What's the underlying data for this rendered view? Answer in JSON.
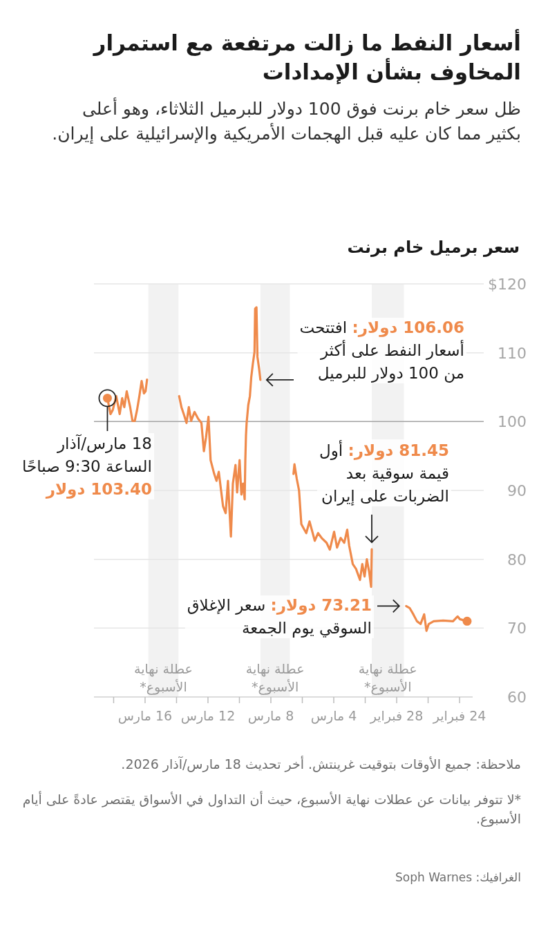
{
  "chart_data": {
    "type": "line",
    "title": "أسعار النفط ما زالت مرتفعة مع استمرار المخاوف بشأن الإمدادات",
    "subtitle": "ظل سعر خام برنت فوق 100 دولار للبرميل الثلاثاء، وهو أعلى بكثير مما كان عليه قبل الهجمات الأمريكية والإسرائيلية على إيران.",
    "ylabel": "سعر برميل خام برنت",
    "xlim": [
      "2026-03-19T06:00",
      "2026-02-23T04:00"
    ],
    "xticks": [
      {
        "value": "2026-02-24",
        "label": "24 فبراير"
      },
      {
        "value": "2026-02-26",
        "label": null
      },
      {
        "value": "2026-02-28",
        "label": "28 فبراير"
      },
      {
        "value": "2026-03-02",
        "label": null
      },
      {
        "value": "2026-03-04",
        "label": "4 مارس"
      },
      {
        "value": "2026-03-06",
        "label": null
      },
      {
        "value": "2026-03-08",
        "label": "8 مارس"
      },
      {
        "value": "2026-03-10",
        "label": null
      },
      {
        "value": "2026-03-12",
        "label": "12 مارس"
      },
      {
        "value": "2026-03-14",
        "label": null
      },
      {
        "value": "2026-03-16",
        "label": "16 مارس"
      },
      {
        "value": "2026-03-18",
        "label": null
      }
    ],
    "ylim": [
      60,
      120
    ],
    "yticks": [
      60,
      70,
      80,
      90,
      100,
      110,
      {
        "value": 120,
        "label": "$120"
      }
    ],
    "grid": "y",
    "ref_lines": [
      {
        "axis": "y",
        "value": 100,
        "color": "#a6a6a6"
      }
    ],
    "bands": [
      {
        "axis": "x",
        "from": "2026-02-27T13:00",
        "to": "2026-03-01T14:00",
        "label": "عطلة نهاية\nالأسبوع*",
        "color": "#f2f2f2"
      },
      {
        "axis": "x",
        "from": "2026-03-06T19:00",
        "to": "2026-03-08T16:00",
        "label": "عطلة نهاية\nالأسبوع*",
        "color": "#f2f2f2"
      },
      {
        "axis": "x",
        "from": "2026-03-13T21:00",
        "to": "2026-03-15T19:00",
        "label": "عطلة نهاية\nالأسبوع*",
        "color": "#f2f2f2"
      }
    ],
    "series": [
      {
        "color": "#ef8a4b",
        "x": [
          "2026-02-23T12:30",
          "2026-02-23T23:30",
          "2026-02-24T03:00",
          "2026-02-24T10:00",
          "2026-02-25T01:00",
          "2026-02-25T15:30",
          "2026-02-25T23:00",
          "2026-02-26T02:30",
          "2026-02-26T06:00",
          "2026-02-26T11:30",
          "2026-02-26T17:00",
          "2026-02-26T22:30",
          "2026-02-27T04:00",
          "2026-02-27T09:30"
        ],
        "values": [
          71.0,
          71.3,
          71.7,
          71.0,
          71.1,
          71.0,
          70.6,
          69.6,
          72.0,
          70.6,
          71.0,
          72.0,
          72.9,
          73.21
        ]
      },
      {
        "color": "#ef8a4b",
        "x": [
          "2026-03-01T14:00",
          "2026-03-01T15:00",
          "2026-03-01T18:00",
          "2026-03-01T21:30",
          "2026-03-02T01:00",
          "2026-03-02T04:30",
          "2026-03-02T08:00",
          "2026-03-02T14:00",
          "2026-03-02T19:00",
          "2026-03-03T00:30",
          "2026-03-03T03:30",
          "2026-03-03T08:00",
          "2026-03-03T13:30",
          "2026-03-03T19:00",
          "2026-03-03T23:30",
          "2026-03-04T06:00",
          "2026-03-04T11:00",
          "2026-03-04T18:30",
          "2026-03-05T00:00",
          "2026-03-05T05:00",
          "2026-03-05T13:00",
          "2026-03-05T18:00",
          "2026-03-06T01:30",
          "2026-03-06T05:00",
          "2026-03-06T08:30",
          "2026-03-06T12:00",
          "2026-03-06T13:30"
        ],
        "values": [
          81.45,
          76.0,
          78.2,
          80.0,
          77.5,
          79.3,
          77.0,
          78.6,
          79.3,
          82.0,
          84.3,
          82.4,
          83.1,
          81.7,
          84.0,
          81.4,
          82.4,
          83.1,
          83.8,
          82.7,
          85.5,
          83.8,
          85.1,
          90.0,
          91.7,
          93.8,
          92.4
        ]
      },
      {
        "color": "#ef8a4b",
        "x": [
          "2026-03-08T16:00",
          "2026-03-08T18:00",
          "2026-03-08T20:30",
          "2026-03-08T22:00",
          "2026-03-09T00:00",
          "2026-03-09T01:00",
          "2026-03-09T03:30",
          "2026-03-09T06:00",
          "2026-03-09T08:00",
          "2026-03-09T10:30",
          "2026-03-09T13:00",
          "2026-03-09T14:00",
          "2026-03-09T15:00",
          "2026-03-09T16:00",
          "2026-03-09T18:30",
          "2026-03-09T21:00",
          "2026-03-09T23:45",
          "2026-03-10T03:30",
          "2026-03-10T06:00",
          "2026-03-10T10:00",
          "2026-03-10T13:00",
          "2026-03-10T17:30",
          "2026-03-10T21:00",
          "2026-03-11T01:00",
          "2026-03-11T04:00",
          "2026-03-11T07:30",
          "2026-03-11T11:00",
          "2026-03-11T14:30",
          "2026-03-11T20:00",
          "2026-03-11T23:15",
          "2026-03-12T03:00",
          "2026-03-12T06:15",
          "2026-03-12T10:00",
          "2026-03-12T15:00",
          "2026-03-12T20:30",
          "2026-03-13T01:45",
          "2026-03-13T05:15",
          "2026-03-13T08:45",
          "2026-03-13T13:00",
          "2026-03-13T16:30",
          "2026-03-13T20:00"
        ],
        "values": [
          106.06,
          107.7,
          109.4,
          116.6,
          116.4,
          110.1,
          108.4,
          106.4,
          103.7,
          102.4,
          99.8,
          98.0,
          94.4,
          88.7,
          91.0,
          89.4,
          94.4,
          89.7,
          93.7,
          91.0,
          83.3,
          91.4,
          86.7,
          87.7,
          90.0,
          92.7,
          91.4,
          92.4,
          94.4,
          100.7,
          97.7,
          95.7,
          99.8,
          100.4,
          101.4,
          100.1,
          102.1,
          99.8,
          101.1,
          102.1,
          103.7
        ]
      },
      {
        "color": "#ef8a4b",
        "x": [
          "2026-03-15T21:00",
          "2026-03-15T23:15",
          "2026-03-16T01:45",
          "2026-03-16T05:15",
          "2026-03-16T08:45",
          "2026-03-16T12:15",
          "2026-03-16T15:45",
          "2026-03-16T19:15",
          "2026-03-16T22:45",
          "2026-03-17T04:00",
          "2026-03-17T07:45",
          "2026-03-17T11:00",
          "2026-03-17T14:45",
          "2026-03-17T20:00",
          "2026-03-18T01:15",
          "2026-03-18T04:45",
          "2026-03-18T09:30"
        ],
        "values": [
          106.1,
          104.4,
          104.1,
          105.9,
          103.7,
          101.7,
          100.1,
          100.1,
          102.1,
          104.4,
          102.1,
          103.4,
          101.1,
          103.7,
          101.7,
          101.1,
          103.4
        ]
      },
      {
        "type": "scatter",
        "color": "#ef8a4b",
        "x": [
          "2026-02-23T12:30",
          "2026-03-18T09:30"
        ],
        "values": [
          71.0,
          103.4
        ]
      }
    ],
    "annotations": [
      {
        "text": "18 مارس/آذار\nالساعة 9:30 صباحًا\n103.40 دولار",
        "x": "2026-03-18T09:30",
        "y": 103.4
      },
      {
        "text": "106.06 دولار: افتتحت\nأسعار النفط على أكثر\nمن 100 دولار للبرميل",
        "x": "2026-03-08T16:00",
        "y": 106.06
      },
      {
        "text": "81.45 دولار: أول\nقيمة سوقية بعد\nالضربات على إيران",
        "x": "2026-03-01T14:00",
        "y": 81.45
      },
      {
        "text": "73.21 دولار: سعر الإغلاق\nالسوقي يوم الجمعة",
        "x": "2026-02-27T09:30",
        "y": 73.21
      },
      "ملاحظة: جميع الأوقات بتوقيت غرينتش. أخر تحديث 18 مارس/آذار 2026.",
      "*لا تتوفر بيانات عن عطلات نهاية الأسبوع، حيث أن التداول في الأسواق يقتصر عادةً على أيام الأسبوع.",
      "الغرافيك: Soph Warnes"
    ]
  }
}
